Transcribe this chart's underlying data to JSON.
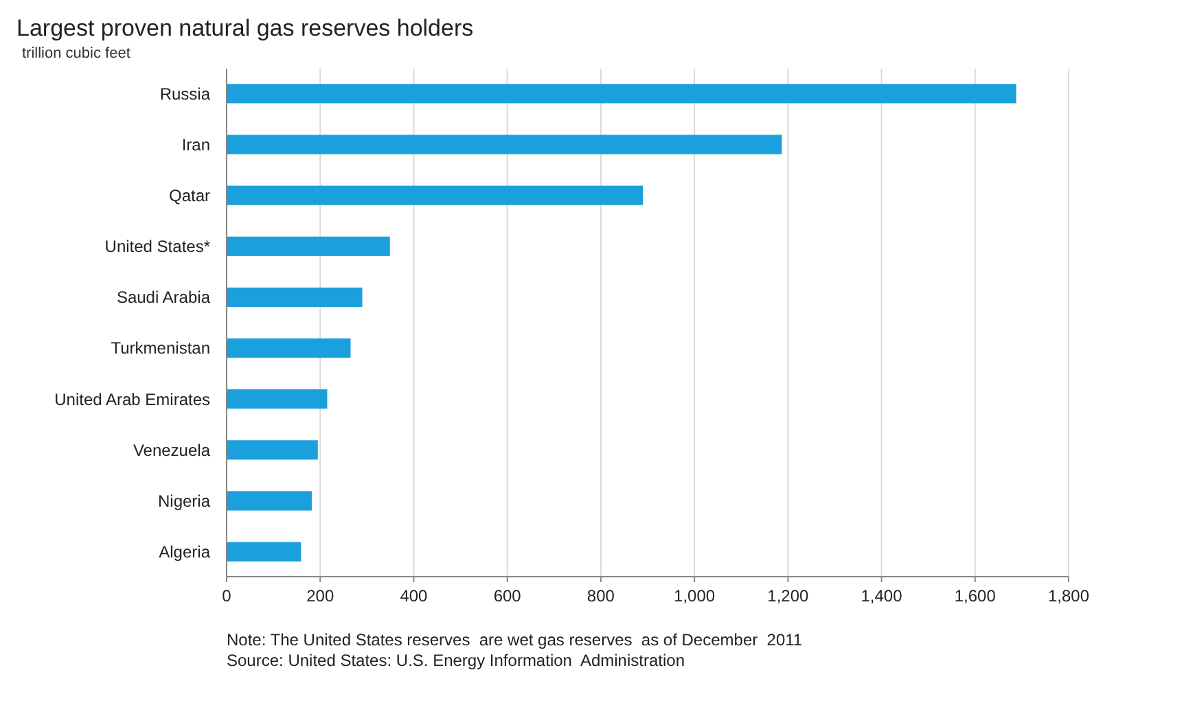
{
  "chart_data": {
    "type": "bar",
    "orientation": "horizontal",
    "title": "Largest proven natural  gas reserves holders",
    "subtitle": "trillion cubic feet",
    "categories": [
      "Russia",
      "Iran",
      "Qatar",
      "United States*",
      "Saudi Arabia",
      "Turkmenistan",
      "United Arab Emirates",
      "Venezuela",
      "Nigeria",
      "Algeria"
    ],
    "values": [
      1688,
      1187,
      890,
      349,
      290,
      265,
      215,
      195,
      182,
      159
    ],
    "color": "#1aa0dc",
    "xlim": [
      0,
      1800
    ],
    "xticks": [
      0,
      {
        "value": 200,
        "label": "200"
      },
      {
        "value": 400,
        "label": "400"
      },
      {
        "value": 600,
        "label": "600"
      },
      {
        "value": 800,
        "label": "800"
      },
      {
        "value": 1000,
        "label": "1,000"
      },
      {
        "value": 1200,
        "label": "1,200"
      },
      {
        "value": 1400,
        "label": "1,400"
      },
      {
        "value": 1600,
        "label": "1,600"
      },
      {
        "value": 1800,
        "label": "1,800"
      }
    ],
    "grid": "x",
    "annotations": [
      "Note: The United States reserves  are wet gas reserves  as of December  2011",
      "Source: United States: U.S. Energy Information  Administration"
    ]
  }
}
